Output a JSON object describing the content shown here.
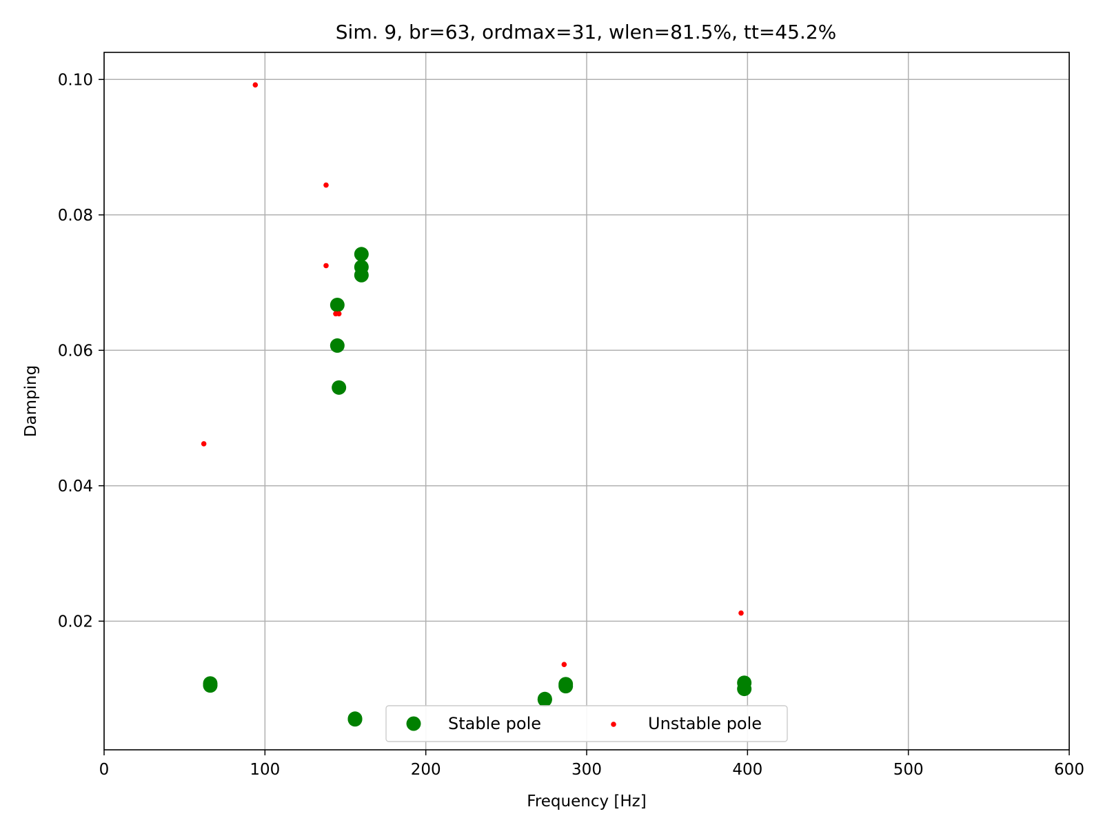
{
  "chart_data": {
    "type": "scatter",
    "title": "Sim. 9, br=63, ordmax=31, wlen=81.5%, tt=45.2%",
    "xlabel": "Frequency [Hz]",
    "ylabel": "Damping",
    "xlim": [
      0,
      600
    ],
    "ylim": [
      0.001,
      0.104
    ],
    "x_ticks": [
      0,
      100,
      200,
      300,
      400,
      500,
      600
    ],
    "x_tick_labels": [
      "0",
      "100",
      "200",
      "300",
      "400",
      "500",
      "600"
    ],
    "y_ticks": [
      0.02,
      0.04,
      0.06,
      0.08,
      0.1
    ],
    "y_tick_labels": [
      "0.02",
      "0.04",
      "0.06",
      "0.08",
      "0.10"
    ],
    "grid": true,
    "legend_position": "bottom-center",
    "series": [
      {
        "name": "Stable pole",
        "color": "#008000",
        "marker": "large-circle",
        "points": [
          {
            "x": 66,
            "y": 0.0105
          },
          {
            "x": 66,
            "y": 0.0108
          },
          {
            "x": 145,
            "y": 0.0667
          },
          {
            "x": 145,
            "y": 0.0607
          },
          {
            "x": 146,
            "y": 0.0545
          },
          {
            "x": 156,
            "y": 0.0055
          },
          {
            "x": 156,
            "y": 0.0056
          },
          {
            "x": 160,
            "y": 0.0742
          },
          {
            "x": 160,
            "y": 0.0723
          },
          {
            "x": 160,
            "y": 0.0711
          },
          {
            "x": 274,
            "y": 0.0084
          },
          {
            "x": 274,
            "y": 0.0085
          },
          {
            "x": 287,
            "y": 0.0104
          },
          {
            "x": 287,
            "y": 0.0107
          },
          {
            "x": 398,
            "y": 0.01
          },
          {
            "x": 398,
            "y": 0.0109
          }
        ]
      },
      {
        "name": "Unstable pole",
        "color": "#ff0000",
        "marker": "small-dot",
        "points": [
          {
            "x": 62,
            "y": 0.0462
          },
          {
            "x": 94,
            "y": 0.0992
          },
          {
            "x": 138,
            "y": 0.0844
          },
          {
            "x": 138,
            "y": 0.0725
          },
          {
            "x": 144,
            "y": 0.0654
          },
          {
            "x": 146,
            "y": 0.0654
          },
          {
            "x": 286,
            "y": 0.0136
          },
          {
            "x": 396,
            "y": 0.0212
          }
        ]
      }
    ]
  }
}
